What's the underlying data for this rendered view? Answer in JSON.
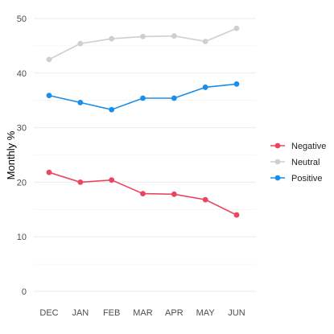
{
  "chart_data": {
    "type": "line",
    "categories": [
      "DEC",
      "JAN",
      "FEB",
      "MAR",
      "APR",
      "MAY",
      "JUN"
    ],
    "ylabel": "Monthly %",
    "xlabel": "",
    "ylim": [
      0,
      50
    ],
    "y_ticks": [
      0,
      10,
      20,
      30,
      40,
      50
    ],
    "grid": true,
    "legend_position": "right",
    "series": [
      {
        "name": "Negative",
        "color": "#e8475f",
        "values": [
          21.8,
          20.0,
          20.4,
          17.9,
          17.8,
          16.8,
          14.0
        ]
      },
      {
        "name": "Neutral",
        "color": "#cfcfcf",
        "values": [
          42.5,
          45.4,
          46.3,
          46.7,
          46.8,
          45.8,
          48.2
        ]
      },
      {
        "name": "Positive",
        "color": "#1a8ee8",
        "values": [
          35.9,
          34.6,
          33.3,
          35.4,
          35.4,
          37.4,
          38.0
        ]
      }
    ]
  }
}
